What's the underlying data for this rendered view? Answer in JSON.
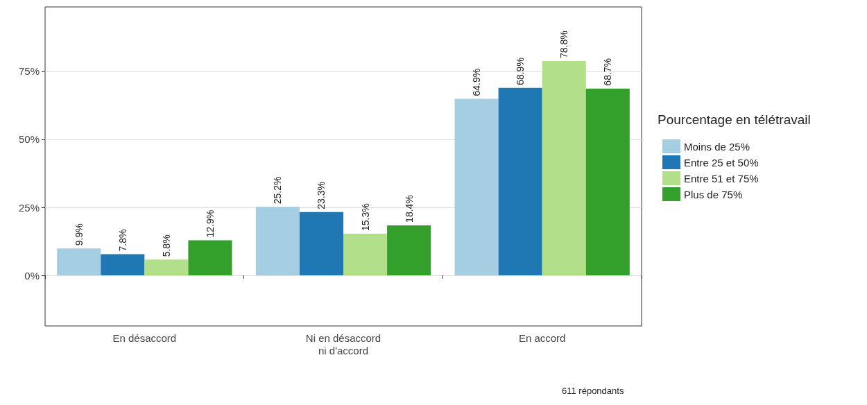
{
  "chart_data": {
    "type": "bar",
    "categories": [
      "En désaccord",
      "Ni en désaccord\nni d'accord",
      "En accord"
    ],
    "series": [
      {
        "name": "Moins de 25%",
        "color": "#a6cee3",
        "values": [
          9.9,
          25.2,
          64.9
        ],
        "value_labels": [
          "9.9%",
          "25.2%",
          "64.9%"
        ]
      },
      {
        "name": "Entre 25 et 50%",
        "color": "#1f78b4",
        "values": [
          7.8,
          23.3,
          68.9
        ],
        "value_labels": [
          "7.8%",
          "23.3%",
          "68.9%"
        ]
      },
      {
        "name": "Entre 51 et 75%",
        "color": "#b2df8a",
        "values": [
          5.8,
          15.3,
          78.8
        ],
        "value_labels": [
          "5.8%",
          "15.3%",
          "78.8%"
        ]
      },
      {
        "name": "Plus de 75%",
        "color": "#33a02c",
        "values": [
          12.9,
          18.4,
          68.7
        ],
        "value_labels": [
          "12.9%",
          "18.4%",
          "68.7%"
        ]
      }
    ],
    "ylim": [
      -18.6,
      98.7
    ],
    "yticks": [
      {
        "value": 0,
        "label": "0%"
      },
      {
        "value": 25,
        "label": "25%"
      },
      {
        "value": 50,
        "label": "50%"
      },
      {
        "value": 75,
        "label": "75%"
      }
    ],
    "grid": "y",
    "legend": "right",
    "legend_title": "Pourcentage en télétravail",
    "annotations": [
      "611 répondants"
    ]
  }
}
